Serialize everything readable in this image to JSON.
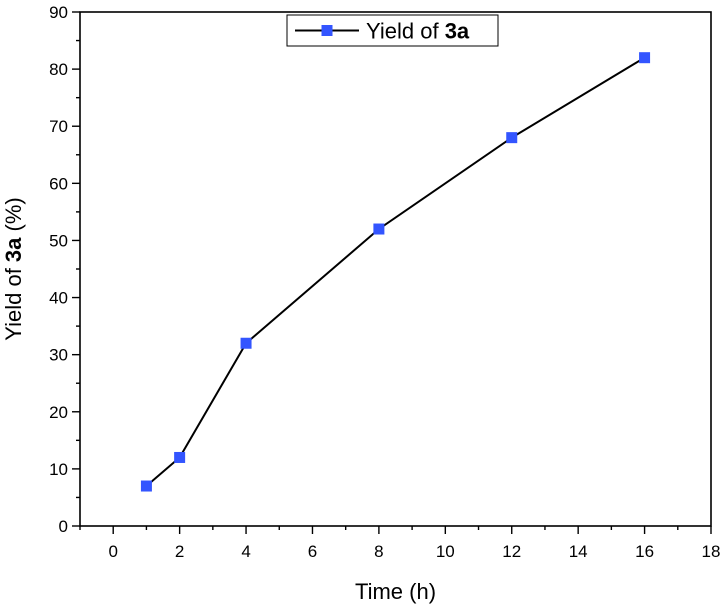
{
  "chart_data": {
    "type": "line",
    "x": [
      1,
      2,
      4,
      8,
      12,
      16
    ],
    "series": [
      {
        "name": "Yield of 3a",
        "values": [
          7,
          12,
          32,
          52,
          68,
          82
        ]
      }
    ],
    "legend": {
      "text": "Yield of ",
      "bold": "3a",
      "placement": "top-center"
    },
    "xlabel": "Time (h)",
    "ylabel": {
      "prefix": "Yield of ",
      "bold": "3a",
      "suffix": " (%)"
    },
    "xlim": [
      -1,
      18
    ],
    "ylim": [
      0,
      90
    ],
    "xticks": [
      0,
      2,
      4,
      6,
      8,
      10,
      12,
      14,
      16,
      18
    ],
    "yticks": [
      0,
      10,
      20,
      30,
      40,
      50,
      60,
      70,
      80,
      90
    ],
    "grid": false,
    "colors": {
      "line": "#000000",
      "marker": "#3355ff",
      "axis": "#000000"
    }
  }
}
